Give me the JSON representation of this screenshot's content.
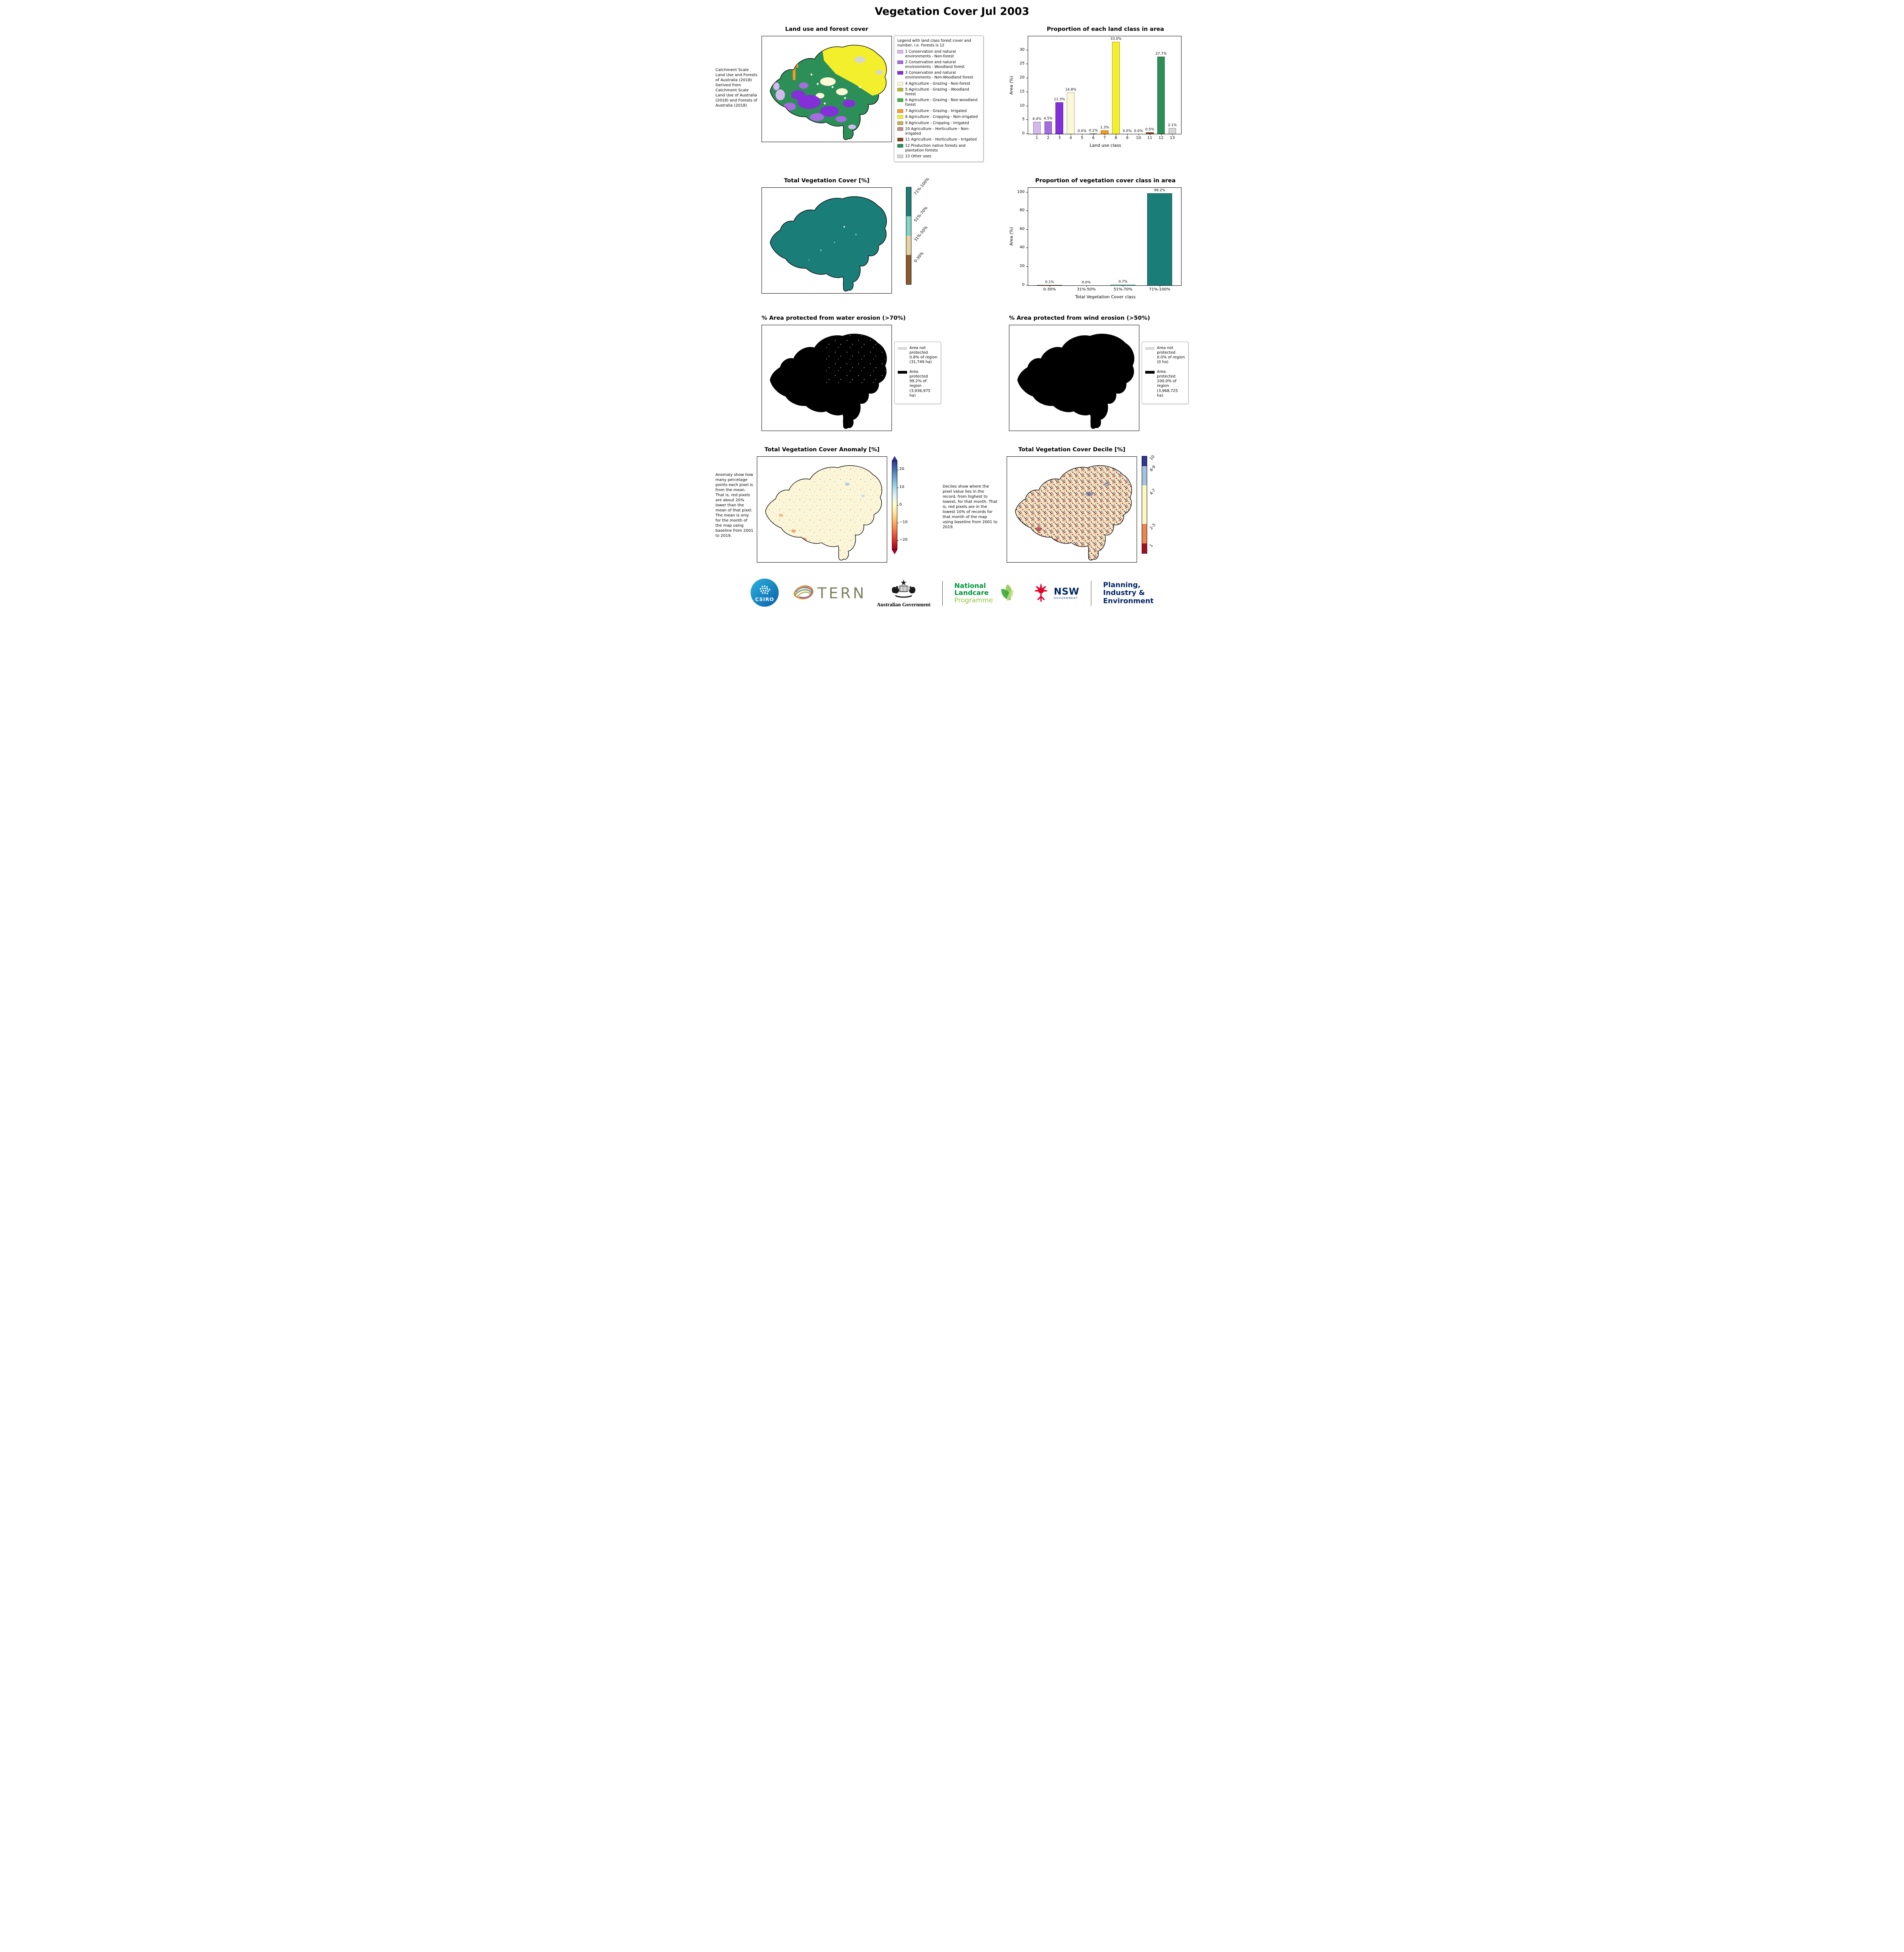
{
  "title": "Vegetation Cover Jul 2003",
  "panels": {
    "landuse": {
      "title": "Land use and forest cover",
      "side_note": "Catchment Scale Land Use and Forests of Australia (2018) Derived from Catchment Scale Land Use of Australia (2018) and Forests of Australia (2018)",
      "legend_title": "Legend with land class forest cover and number, i.e. Forests is 12",
      "legend_items": [
        {
          "label": "1 Conservation and natural environments - Non-forest",
          "color": "#d4b9ee"
        },
        {
          "label": "2 Conservation and natural environments - Woodland forest",
          "color": "#a66de0"
        },
        {
          "label": "3 Conservation and natural environments - Non-Woodland forest",
          "color": "#8430d8"
        },
        {
          "label": "4 Agriculture - Grazing - Non-forest",
          "color": "#fbf8d5"
        },
        {
          "label": "5 Agriculture - Grazing - Woodland forest",
          "color": "#b3bc35"
        },
        {
          "label": "6 Agriculture - Grazing - Non-woodland forest",
          "color": "#46b049"
        },
        {
          "label": "7 Agriculture - Grazing - Irrigated",
          "color": "#fb9a20"
        },
        {
          "label": "8 Agriculture - Cropping - Non-irrigated",
          "color": "#f4ef2c"
        },
        {
          "label": "9 Agriculture - Cropping - Irrigated",
          "color": "#c0b25e"
        },
        {
          "label": "10 Agriculture - Horticulture - Non-irrigated",
          "color": "#bc8f8f"
        },
        {
          "label": "11 Agriculture - Horticulture - Irrigated",
          "color": "#8a4a21"
        },
        {
          "label": "12 Production native forests and plantation forests",
          "color": "#2c8f58"
        },
        {
          "label": "13 Other uses",
          "color": "#d6d6d6"
        }
      ]
    },
    "vegcover_map": {
      "title": "Total Vegetation Cover [%]",
      "colorbar": [
        {
          "label": "71%-100%",
          "color": "#1b7d78",
          "span": 30
        },
        {
          "label": "51%-70%",
          "color": "#7fd6c4",
          "span": 20
        },
        {
          "label": "31%-50%",
          "color": "#e5d3a2",
          "span": 20
        },
        {
          "label": "0-30%",
          "color": "#8a5a2a",
          "span": 30
        }
      ]
    },
    "water_erosion": {
      "title": "% Area protected from water erosion (>70%)",
      "legend": [
        {
          "label": "Area not protected 0.8% of region (31,749 ha)",
          "color": "#d9d9d9"
        },
        {
          "label": "Area protected 99.2% of region (3,936,975 ha)",
          "color": "#000000"
        }
      ]
    },
    "wind_erosion": {
      "title": "% Area protected from wind erosion (>50%)",
      "legend": [
        {
          "label": "Area not protected 0.0% of region (0 ha)",
          "color": "#d9d9d9"
        },
        {
          "label": "Area protected 100.0% of region (3,968,725 ha)",
          "color": "#000000"
        }
      ]
    },
    "anomaly": {
      "title": "Total Vegetation Cover Anomaly [%]",
      "side_note": "Anomaly show how many percetage points each pixel is from the mean. That is, red pixels are about 20% lower than the mean of that pixel. The mean is only for the month of the map using baseline from 2001 to 2019.",
      "colorbar_ticks": [
        20,
        10,
        0,
        -10,
        -20
      ]
    },
    "decile": {
      "title": "Total Vegetation Cover Decile [%]",
      "side_note": "Deciles show where the pixel value lies in the record, from highest to lowest, for that month. That is, red pixels are in the lowest 10% of records for that month of the map using baseline from 2001 to 2019.",
      "colorbar": [
        {
          "label": "10",
          "color": "#323695",
          "span": 1
        },
        {
          "label": "8-9",
          "color": "#a3c2dd",
          "span": 2
        },
        {
          "label": "4-7",
          "color": "#fdf7c2",
          "span": 4
        },
        {
          "label": "2-3",
          "color": "#ec854e",
          "span": 2
        },
        {
          "label": "1",
          "color": "#a50f26",
          "span": 1
        }
      ]
    }
  },
  "chart_data": [
    {
      "id": "landclass",
      "type": "bar",
      "title": "Proportion of each land class in area",
      "xlabel": "Land use class",
      "ylabel": "Area (%)",
      "categories": [
        "1",
        "2",
        "3",
        "4",
        "5",
        "6",
        "7",
        "8",
        "9",
        "10",
        "11",
        "12",
        "13"
      ],
      "values": [
        4.4,
        4.5,
        11.3,
        14.8,
        0.0,
        0.2,
        1.3,
        33.0,
        0.0,
        0.0,
        0.5,
        27.7,
        2.1
      ],
      "labels": [
        "4.4%",
        "4.5%",
        "11.3%",
        "14.8%",
        "0.0%",
        "0.2%",
        "1.3%",
        "33.0%",
        "0.0%",
        "0.0%",
        "0.5%",
        "27.7%",
        "2.1%"
      ],
      "colors": [
        "#d4b9ee",
        "#a66de0",
        "#8430d8",
        "#fbf8d5",
        "#b3bc35",
        "#46b049",
        "#fb9a20",
        "#f4ef2c",
        "#c0b25e",
        "#bc8f8f",
        "#8a4a21",
        "#2c8f58",
        "#d6d6d6"
      ],
      "ylim": [
        0,
        35
      ],
      "yticks": [
        0,
        5,
        10,
        15,
        20,
        25,
        30
      ],
      "legend_position": "none",
      "grid": false
    },
    {
      "id": "vegcoverclass",
      "type": "bar",
      "title": "Proportion of vegetation cover class in area",
      "xlabel": "Total Vegetation Cover class",
      "ylabel": "Area (%)",
      "categories": [
        "0-30%",
        "31%-50%",
        "51%-70%",
        "71%-100%"
      ],
      "values": [
        0.1,
        0.0,
        0.7,
        99.2
      ],
      "labels": [
        "0.1%",
        "0.0%",
        "0.7%",
        "99.2%"
      ],
      "colors": [
        "#8a5a2a",
        "#e5d3a2",
        "#7fd6c4",
        "#1b7d78"
      ],
      "ylim": [
        0,
        105
      ],
      "yticks": [
        0,
        20,
        40,
        60,
        80,
        100
      ],
      "legend_position": "none",
      "grid": false
    }
  ],
  "footer": {
    "csiro_label": "CSIRO",
    "tern_label": "TERN",
    "aus_gov_label": "Australian Government",
    "landcare_lines": [
      "National",
      "Landcare",
      "Programme"
    ],
    "nsw_label": "NSW",
    "nsw_sub_label": "GOVERNMENT",
    "planning_lines": [
      "Planning,",
      "Industry &",
      "Environment"
    ]
  }
}
